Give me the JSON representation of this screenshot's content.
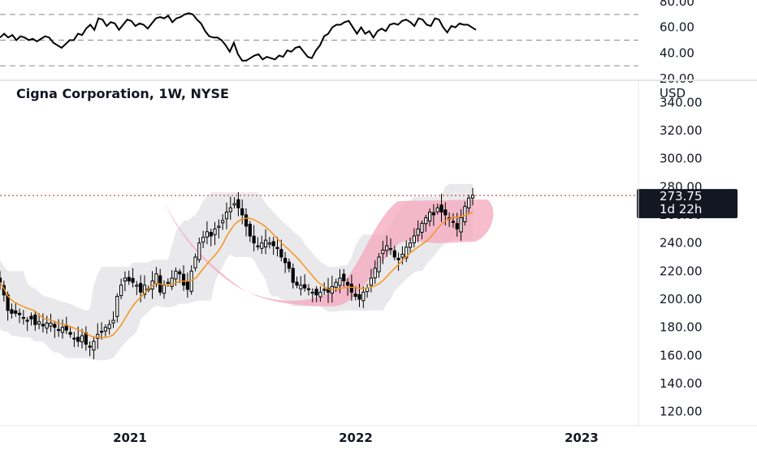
{
  "chart_data": [
    {
      "type": "line",
      "name": "rsi-pane",
      "ylim": [
        20,
        80
      ],
      "yticks": [
        "80.00",
        "60.00",
        "40.00",
        "20.00"
      ],
      "levels": [
        70,
        50,
        30
      ],
      "values": [
        52,
        55,
        52,
        54,
        50,
        53,
        52,
        50,
        51,
        49,
        51,
        53,
        52,
        48,
        46,
        44,
        47,
        50,
        50,
        55,
        54,
        59,
        62,
        58,
        67,
        66,
        61,
        64,
        63,
        58,
        62,
        66,
        65,
        61,
        63,
        62,
        59,
        63,
        67,
        68,
        67,
        69,
        64,
        67,
        68,
        70,
        71,
        70,
        66,
        63,
        57,
        53,
        52,
        52,
        50,
        46,
        41,
        48,
        39,
        34,
        34,
        36,
        38,
        39,
        35,
        37,
        36,
        35,
        38,
        37,
        42,
        41,
        44,
        45,
        41,
        37,
        36,
        42,
        46,
        53,
        55,
        60,
        62,
        62,
        64,
        65,
        60,
        55,
        60,
        55,
        57,
        52,
        57,
        59,
        57,
        62,
        63,
        62,
        65,
        66,
        64,
        61,
        67,
        66,
        62,
        61,
        67,
        66,
        60,
        56,
        61,
        60,
        63,
        62,
        62,
        60,
        58
      ]
    },
    {
      "type": "candlestick",
      "name": "price-pane",
      "title": "Cigna Corporation, 1W, NYSE",
      "ylabel": "USD",
      "ylim": [
        110,
        350
      ],
      "yticks": [
        "340.00",
        "320.00",
        "300.00",
        "280.00",
        "260.00",
        "240.00",
        "220.00",
        "200.00",
        "180.00",
        "160.00",
        "140.00",
        "120.00"
      ],
      "xticks": [
        "2021",
        "2022",
        "2023"
      ],
      "last_price": "273.75",
      "countdown": "1d 22h",
      "line_colors": {
        "ma": "#f7941d",
        "band": "#e9e9ec",
        "highlight": "#f4a7bf",
        "price_line": "#c62828",
        "badge": "#131722"
      },
      "closes": [
        212,
        203,
        192,
        190,
        190,
        189,
        187,
        185,
        186,
        182,
        184,
        181,
        183,
        183,
        180,
        178,
        180,
        178,
        175,
        172,
        170,
        174,
        168,
        166,
        170,
        175,
        177,
        180,
        182,
        185,
        202,
        210,
        215,
        213,
        212,
        210,
        205,
        210,
        207,
        213,
        218,
        205,
        210,
        212,
        215,
        220,
        218,
        210,
        207,
        220,
        230,
        240,
        244,
        248,
        245,
        250,
        252,
        256,
        262,
        265,
        268,
        265,
        260,
        252,
        245,
        240,
        238,
        240,
        242,
        240,
        238,
        236,
        230,
        226,
        222,
        212,
        210,
        210,
        208,
        207,
        205,
        203,
        205,
        207,
        205,
        209,
        212,
        215,
        213,
        210,
        205,
        202,
        200,
        205,
        208,
        215,
        222,
        230,
        235,
        238,
        236,
        230,
        228,
        232,
        237,
        240,
        245,
        250,
        254,
        258,
        262,
        260,
        265,
        262,
        260,
        258,
        255,
        250,
        258,
        266,
        272,
        274
      ]
    }
  ]
}
